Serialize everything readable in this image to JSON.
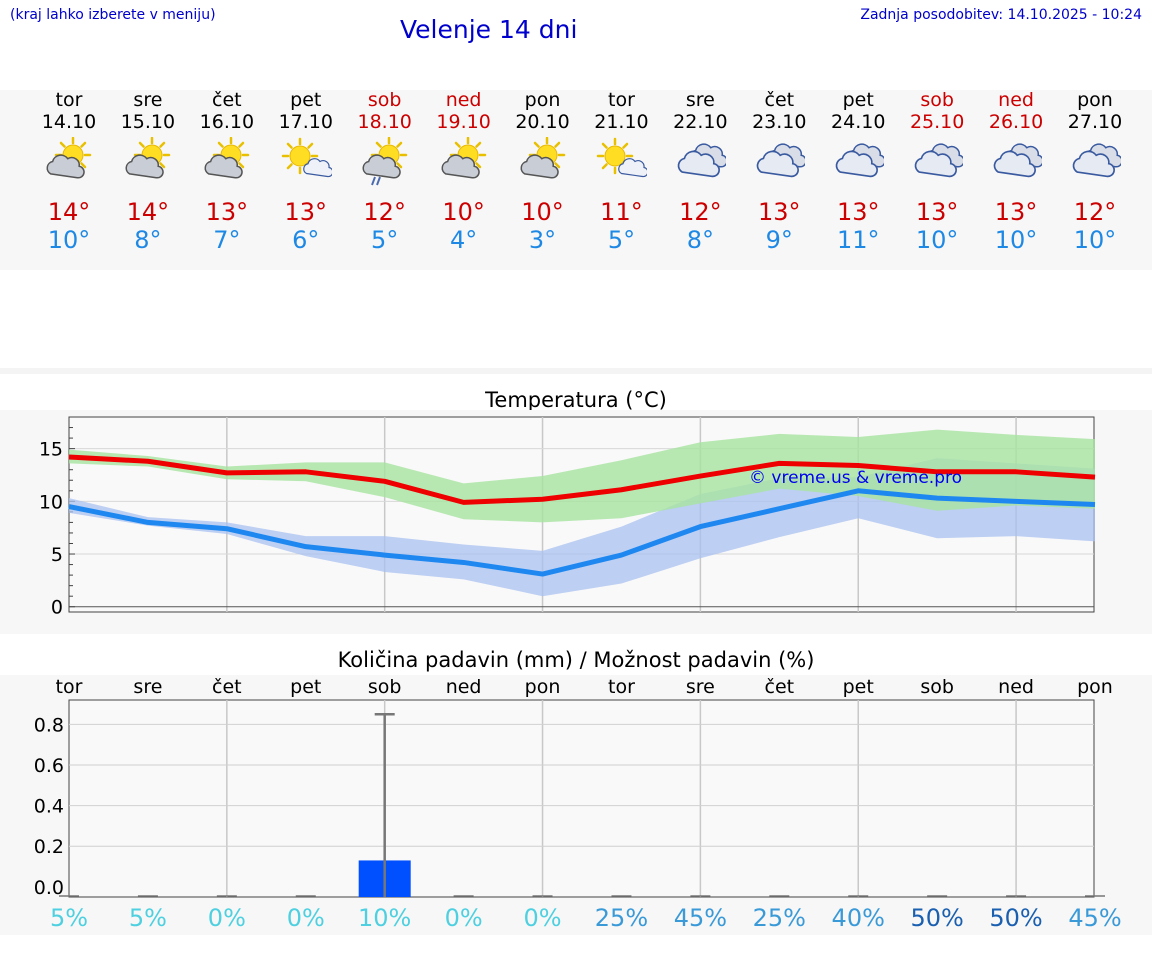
{
  "header": {
    "location_hint": "(kraj lahko izberete v meniju)",
    "title": "Velenje 14 dni",
    "updated": "Zadnja posodobitev: 14.10.2025 - 10:24"
  },
  "days": [
    {
      "name": "tor",
      "date": "14.10",
      "weekend": false,
      "icon": "sun-cloud-icon",
      "tmax": "14°",
      "tmin": "10°"
    },
    {
      "name": "sre",
      "date": "15.10",
      "weekend": false,
      "icon": "sun-cloud-icon",
      "tmax": "14°",
      "tmin": "8°"
    },
    {
      "name": "čet",
      "date": "16.10",
      "weekend": false,
      "icon": "sun-cloud-icon",
      "tmax": "13°",
      "tmin": "7°"
    },
    {
      "name": "pet",
      "date": "17.10",
      "weekend": false,
      "icon": "sun-small-cloud-icon",
      "tmax": "13°",
      "tmin": "6°"
    },
    {
      "name": "sob",
      "date": "18.10",
      "weekend": true,
      "icon": "sun-cloud-rain-icon",
      "tmax": "12°",
      "tmin": "5°"
    },
    {
      "name": "ned",
      "date": "19.10",
      "weekend": true,
      "icon": "sun-cloud-icon",
      "tmax": "10°",
      "tmin": "4°"
    },
    {
      "name": "pon",
      "date": "20.10",
      "weekend": false,
      "icon": "sun-cloud-icon",
      "tmax": "10°",
      "tmin": "3°"
    },
    {
      "name": "tor",
      "date": "21.10",
      "weekend": false,
      "icon": "sun-small-cloud-icon",
      "tmax": "11°",
      "tmin": "5°"
    },
    {
      "name": "sre",
      "date": "22.10",
      "weekend": false,
      "icon": "cloudy-icon",
      "tmax": "12°",
      "tmin": "8°"
    },
    {
      "name": "čet",
      "date": "23.10",
      "weekend": false,
      "icon": "cloudy-icon",
      "tmax": "13°",
      "tmin": "9°"
    },
    {
      "name": "pet",
      "date": "24.10",
      "weekend": false,
      "icon": "cloudy-icon",
      "tmax": "13°",
      "tmin": "11°"
    },
    {
      "name": "sob",
      "date": "25.10",
      "weekend": true,
      "icon": "cloudy-icon",
      "tmax": "13°",
      "tmin": "10°"
    },
    {
      "name": "ned",
      "date": "26.10",
      "weekend": true,
      "icon": "cloudy-icon",
      "tmax": "13°",
      "tmin": "10°"
    },
    {
      "name": "pon",
      "date": "27.10",
      "weekend": false,
      "icon": "cloudy-icon",
      "tmax": "12°",
      "tmin": "10°"
    }
  ],
  "colors": {
    "max_line": "#ee0000",
    "max_band": "#a8e4a0",
    "min_line": "#1e88f0",
    "min_band": "#a8c0f0",
    "weekend_text": "#cc0000",
    "precip_bar": "#0050ff"
  },
  "watermark": "© vreme.us & vreme.pro",
  "chart_data": [
    {
      "type": "line",
      "title": "Temperatura (°C)",
      "categories": [
        "14.10",
        "15.10",
        "16.10",
        "17.10",
        "18.10",
        "19.10",
        "20.10",
        "21.10",
        "22.10",
        "23.10",
        "24.10",
        "25.10",
        "26.10",
        "27.10"
      ],
      "ylim": [
        -0.5,
        18
      ],
      "yticks": [
        0,
        5,
        10,
        15
      ],
      "grid": true,
      "series": [
        {
          "name": "max",
          "values": [
            14.2,
            13.8,
            12.7,
            12.8,
            11.9,
            9.9,
            10.2,
            11.1,
            12.4,
            13.6,
            13.4,
            12.8,
            12.8,
            12.3
          ],
          "band_low": [
            13.6,
            13.3,
            12.1,
            11.9,
            10.4,
            8.3,
            8.0,
            8.4,
            9.8,
            11.2,
            10.5,
            9.1,
            9.6,
            9.3
          ],
          "band_high": [
            14.9,
            14.3,
            13.3,
            13.7,
            13.7,
            11.7,
            12.4,
            13.9,
            15.6,
            16.4,
            16.1,
            16.8,
            16.3,
            15.9
          ]
        },
        {
          "name": "min",
          "values": [
            9.5,
            8.0,
            7.4,
            5.7,
            4.9,
            4.2,
            3.1,
            4.9,
            7.6,
            9.3,
            11.0,
            10.3,
            10.0,
            9.7
          ],
          "band_low": [
            8.9,
            7.7,
            6.9,
            4.8,
            3.3,
            2.6,
            1.0,
            2.2,
            4.6,
            6.6,
            8.4,
            6.5,
            6.7,
            6.2
          ],
          "band_high": [
            10.3,
            8.5,
            8.0,
            6.7,
            6.7,
            5.9,
            5.3,
            7.6,
            10.7,
            12.2,
            12.3,
            14.1,
            13.6,
            13.1
          ]
        }
      ]
    },
    {
      "type": "bar",
      "title": "Količina padavin (mm) / Možnost padavin (%)",
      "categories": [
        "tor",
        "sre",
        "čet",
        "pet",
        "sob",
        "ned",
        "pon",
        "tor",
        "sre",
        "čet",
        "pet",
        "sob",
        "ned",
        "pon"
      ],
      "values": [
        0,
        0,
        0,
        0,
        0.13,
        0,
        0,
        0,
        0,
        0,
        0,
        0,
        0,
        0
      ],
      "error_high": [
        0,
        0,
        0,
        0,
        0.85,
        0,
        0,
        0,
        0,
        0,
        0,
        0,
        0,
        0
      ],
      "ylim": [
        -0.05,
        0.92
      ],
      "yticks": [
        0.0,
        0.2,
        0.4,
        0.6,
        0.8
      ],
      "ytick_labels": [
        "0.0",
        "0.2",
        "0.4",
        "0.6",
        "0.8"
      ],
      "probabilities": [
        "5%",
        "5%",
        "0%",
        "0%",
        "10%",
        "0%",
        "0%",
        "25%",
        "45%",
        "25%",
        "40%",
        "50%",
        "50%",
        "45%"
      ],
      "probability_values": [
        5,
        5,
        0,
        0,
        10,
        0,
        0,
        25,
        45,
        25,
        40,
        50,
        50,
        45
      ]
    }
  ]
}
